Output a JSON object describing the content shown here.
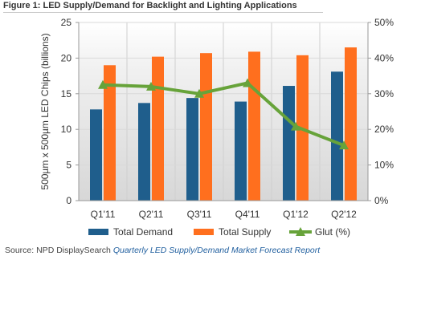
{
  "chart_data": {
    "type": "bar",
    "title": "Figure 1: LED Supply/Demand for Backlight and Lighting Applications",
    "categories": [
      "Q1'11",
      "Q2'11",
      "Q3'11",
      "Q4'11",
      "Q1'12",
      "Q2'12"
    ],
    "series": [
      {
        "name": "Total Demand",
        "type": "bar",
        "axis": "left",
        "color": "#1f5e8c",
        "values": [
          12.8,
          13.7,
          14.4,
          13.9,
          16.1,
          18.1
        ]
      },
      {
        "name": "Total Supply",
        "type": "bar",
        "axis": "left",
        "color": "#ff6f1e",
        "values": [
          19.0,
          20.2,
          20.7,
          20.9,
          20.4,
          21.5
        ]
      },
      {
        "name": "Glut (%)",
        "type": "line",
        "axis": "right",
        "color": "#67a33a",
        "marker": "triangle",
        "values": [
          32.5,
          32.0,
          30.0,
          33.0,
          20.8,
          15.5
        ]
      }
    ],
    "ylabel": "500µm  x 500µm  LED Chips (billions)",
    "ylim": [
      0,
      25
    ],
    "yticks": [
      "0",
      "5",
      "10",
      "15",
      "20",
      "25"
    ],
    "y2lim": [
      0,
      50
    ],
    "y2ticks": [
      "0%",
      "10%",
      "20%",
      "30%",
      "40%",
      "50%"
    ],
    "grid": true,
    "legend_position": "bottom"
  },
  "source": {
    "prefix": "Source: NPD DisplaySearch ",
    "report": "Quarterly LED Supply/Demand Market Forecast Report"
  }
}
